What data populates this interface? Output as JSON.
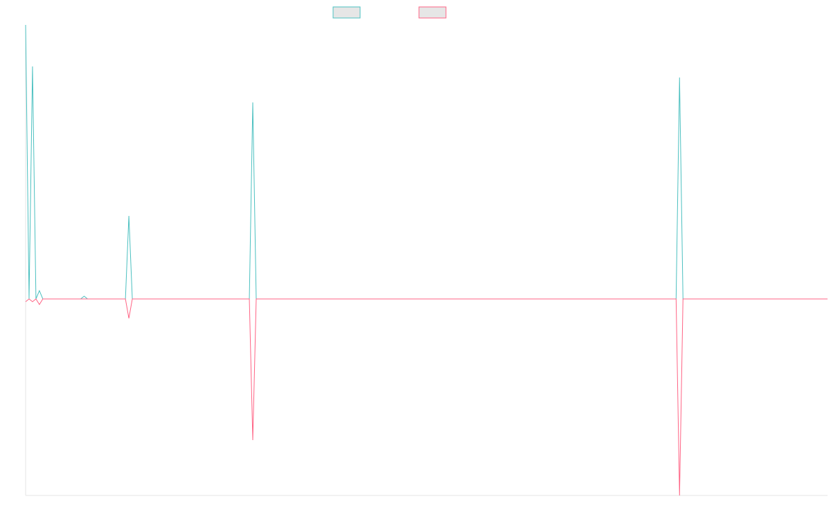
{
  "chart_data": {
    "type": "line",
    "x": [
      0,
      1,
      2,
      3,
      4,
      5,
      16,
      17,
      18,
      29,
      30,
      31,
      65,
      66,
      67,
      189,
      190,
      191,
      233
    ],
    "xlim": [
      0,
      233
    ],
    "ylim": [
      -71,
      99
    ],
    "series": [
      {
        "color": "#4bc0c0",
        "values": [
          99,
          0,
          84,
          0,
          3,
          0,
          0,
          1,
          0,
          0,
          30,
          0,
          0,
          71,
          0,
          0,
          80,
          0,
          0
        ]
      },
      {
        "color": "#ff6384",
        "values": [
          -1,
          0,
          -1,
          0,
          -2,
          0,
          0,
          0,
          0,
          0,
          -7,
          0,
          0,
          -51,
          0,
          0,
          -71,
          0,
          0
        ]
      }
    ]
  }
}
